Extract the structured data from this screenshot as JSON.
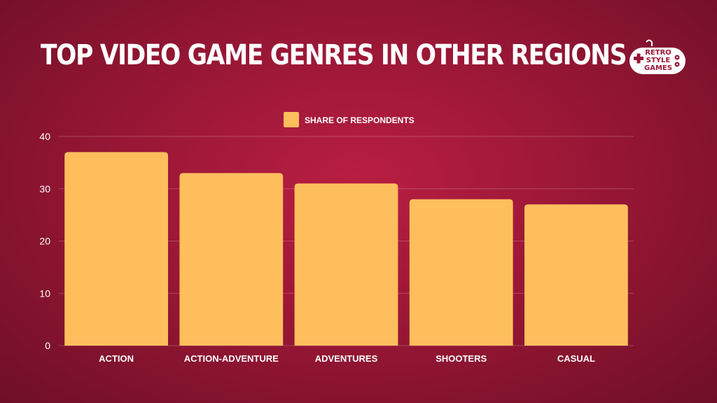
{
  "header": {
    "title": "TOP VIDEO GAME GENRES IN OTHER REGIONS",
    "logo_text": [
      "RETRO",
      "STYLE",
      "GAMES"
    ]
  },
  "colors": {
    "background": "#9a1736",
    "bar": "#ffbe5c",
    "text": "#ffffff"
  },
  "chart_data": {
    "type": "bar",
    "categories": [
      "ACTION",
      "ACTION-ADVENTURE",
      "ADVENTURES",
      "SHOOTERS",
      "CASUAL"
    ],
    "series": [
      {
        "name": "SHARE OF RESPONDENTS",
        "values": [
          37,
          33,
          31,
          28,
          27
        ]
      }
    ],
    "title": "TOP VIDEO GAME GENRES IN OTHER REGIONS",
    "xlabel": "",
    "ylabel": "",
    "ylim": [
      0,
      40
    ],
    "yticks": [
      0,
      10,
      20,
      30,
      40
    ],
    "grid": true,
    "legend": "top-center"
  }
}
